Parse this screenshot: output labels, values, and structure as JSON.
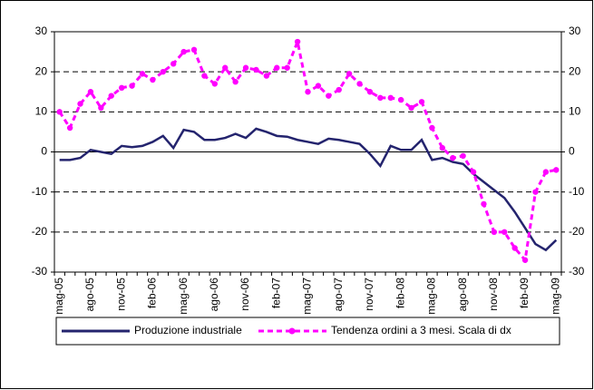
{
  "chart_data": {
    "type": "line",
    "categories": [
      "mag-05",
      null,
      null,
      "ago-05",
      null,
      null,
      "nov-05",
      null,
      null,
      "feb-06",
      null,
      null,
      "mag-06",
      null,
      null,
      "ago-06",
      null,
      null,
      "nov-06",
      null,
      null,
      "feb-07",
      null,
      null,
      "mag-07",
      null,
      null,
      "ago-07",
      null,
      null,
      "nov-07",
      null,
      null,
      "feb-08",
      null,
      null,
      "mag-08",
      null,
      null,
      "ago-08",
      null,
      null,
      "nov-08",
      null,
      null,
      "feb-09",
      null,
      null,
      "mag-09"
    ],
    "series": [
      {
        "name": "Produzione industriale",
        "color": "#24246e",
        "axis": "y",
        "values": [
          -2,
          -2,
          -1.5,
          0.5,
          0,
          -0.5,
          1.5,
          1.2,
          1.5,
          2.5,
          4,
          1,
          5.5,
          5,
          3,
          3,
          3.5,
          4.5,
          3.5,
          5.8,
          5,
          4,
          3.8,
          3,
          2.5,
          2,
          3.3,
          3,
          2.5,
          2,
          -0.5,
          -3.5,
          1.5,
          0.5,
          0.5,
          3,
          -2,
          -1.5,
          -2.5,
          -3,
          -5.5,
          -7.5,
          -9.5,
          -11.5,
          -15,
          -19,
          -23,
          -24.5,
          -22
        ]
      },
      {
        "name": "Tendenza ordini a 3 mesi. Scala di dx",
        "color": "#ff00ff",
        "axis": "y2",
        "values": [
          10,
          6,
          12,
          15,
          11,
          14,
          16,
          16.5,
          19.5,
          18,
          20,
          22,
          25,
          25.5,
          19,
          17,
          21,
          17.5,
          21,
          20.5,
          19,
          21,
          21,
          27.5,
          15,
          16.5,
          14,
          15.5,
          19.5,
          17,
          15,
          13.5,
          13.5,
          13,
          11,
          12.5,
          6,
          1,
          -1.5,
          -1,
          -5,
          -13,
          -20,
          -20,
          -24,
          -27,
          -10,
          -5,
          -4.5
        ]
      }
    ],
    "ylim": [
      -30,
      30
    ],
    "yticks": [
      -30,
      -20,
      -10,
      0,
      10,
      20,
      30
    ],
    "y2lim": [
      -30,
      30
    ],
    "y2ticks": [
      -30,
      -20,
      -10,
      0,
      10,
      20,
      30
    ],
    "grid": true,
    "legend": "bottom"
  }
}
